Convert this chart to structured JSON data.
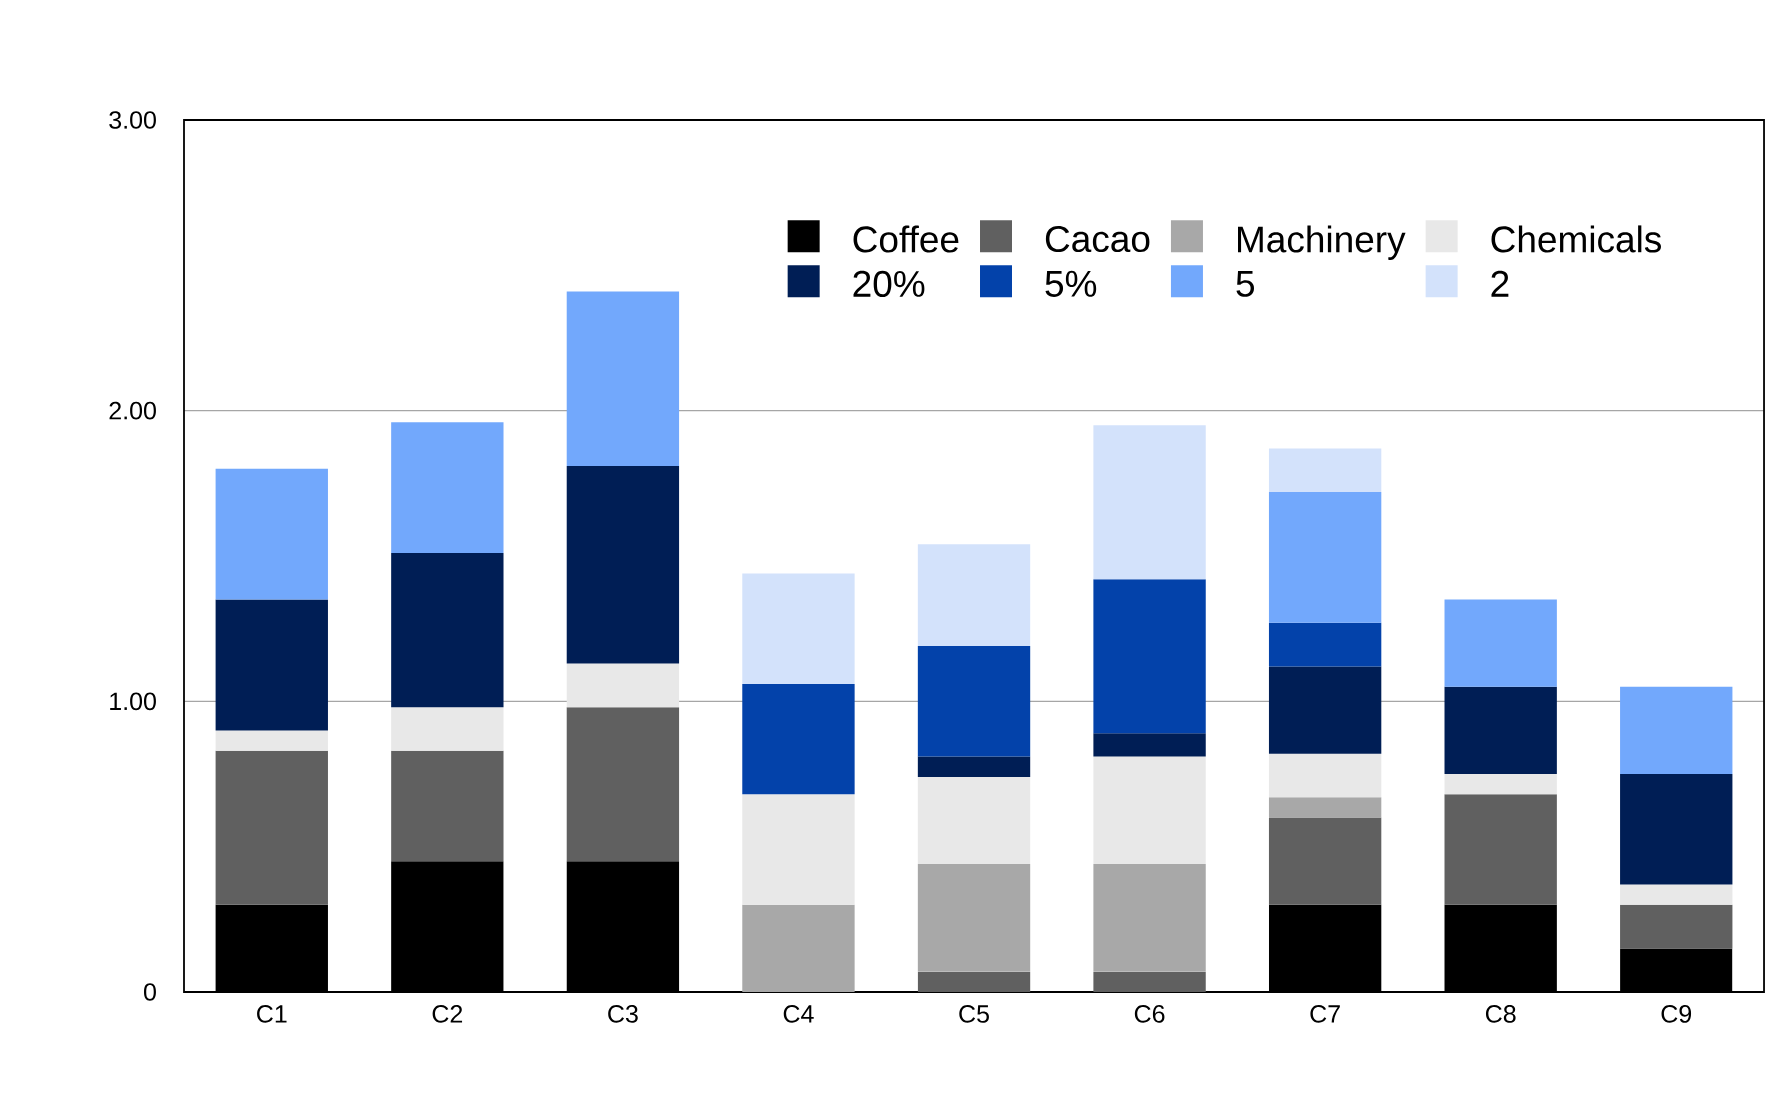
{
  "chart_data": {
    "type": "bar",
    "stacked": true,
    "categories": [
      "C1",
      "C2",
      "C3",
      "C4",
      "C5",
      "C6",
      "C7",
      "C8",
      "C9"
    ],
    "series": [
      {
        "name": "Coffee",
        "color": "#000000",
        "values": [
          0.3,
          0.45,
          0.45,
          null,
          null,
          null,
          0.3,
          0.3,
          0.15
        ]
      },
      {
        "name": "Cacao",
        "color": "#606060",
        "values": [
          0.53,
          0.38,
          0.53,
          null,
          0.07,
          0.07,
          0.3,
          0.38,
          0.15
        ]
      },
      {
        "name": "Machinery",
        "color": "#a8a8a8",
        "values": [
          null,
          null,
          null,
          0.3,
          0.37,
          0.37,
          0.07,
          null,
          null
        ]
      },
      {
        "name": "Chemicals",
        "color": "#e8e8e8",
        "values": [
          0.07,
          0.15,
          0.15,
          0.38,
          0.3,
          0.37,
          0.15,
          0.07,
          0.07
        ]
      },
      {
        "name": "20%",
        "color": "#001e55",
        "values": [
          0.45,
          0.53,
          0.68,
          null,
          0.07,
          0.08,
          0.3,
          0.3,
          0.38
        ]
      },
      {
        "name": "5%",
        "color": "#0342aa",
        "values": [
          null,
          null,
          null,
          0.38,
          0.38,
          0.53,
          0.15,
          null,
          null
        ]
      },
      {
        "name": "5",
        "color": "#72a8fc",
        "values": [
          0.45,
          0.45,
          0.6,
          null,
          null,
          null,
          0.45,
          0.3,
          0.3
        ]
      },
      {
        "name": "2",
        "color": "#d3e2fb",
        "values": [
          null,
          null,
          null,
          0.38,
          0.35,
          0.53,
          0.15,
          null,
          null
        ]
      }
    ],
    "ylim": [
      0,
      3
    ],
    "yticks": [
      0,
      {
        "value": 1,
        "label": "1.00"
      },
      {
        "value": 2,
        "label": "2.00"
      },
      {
        "value": 3,
        "label": "3.00"
      }
    ],
    "grid": "y",
    "legend": "top right"
  }
}
